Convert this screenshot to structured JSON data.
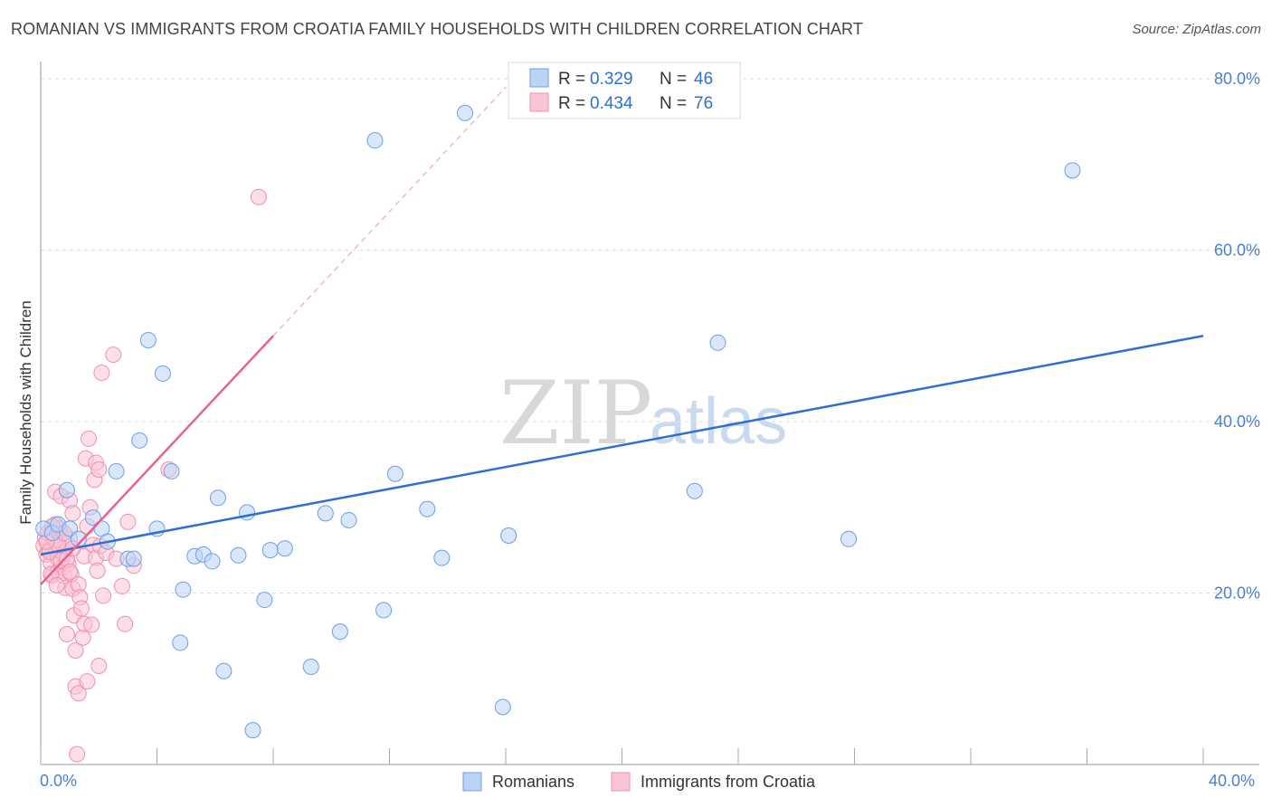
{
  "title": "ROMANIAN VS IMMIGRANTS FROM CROATIA FAMILY HOUSEHOLDS WITH CHILDREN CORRELATION CHART",
  "source": "Source: ZipAtlas.com",
  "watermark": {
    "zip": "ZIP",
    "atlas": "atlas"
  },
  "colors": {
    "blue": "#6c9fe6",
    "blue_line": "#2f6fd0",
    "pink": "#f08fb0",
    "pink_line": "#e8628f",
    "grid": "#dddddd",
    "tick": "#4a7fd4"
  },
  "legend": {
    "r_label": "R =",
    "n_label": "N =",
    "blue": {
      "r": "0.329",
      "n": "46"
    },
    "pink": {
      "r": "0.434",
      "n": "76"
    }
  },
  "bottom_legend": {
    "romanians": "Romanians",
    "croatia": "Immigrants from Croatia"
  },
  "chart_data": {
    "type": "scatter",
    "title": "ROMANIAN VS IMMIGRANTS FROM CROATIA FAMILY HOUSEHOLDS WITH CHILDREN CORRELATION CHART",
    "xlabel": "",
    "ylabel": "Family Households with Children",
    "xlim": [
      0,
      40
    ],
    "ylim": [
      0,
      82
    ],
    "x_tick_labels": [
      "0.0%",
      "40.0%"
    ],
    "y_ticks": [
      20,
      40,
      60,
      80
    ],
    "y_tick_labels": [
      "20.0%",
      "40.0%",
      "60.0%",
      "80.0%"
    ],
    "grid": true,
    "series": [
      {
        "name": "Romanians",
        "color": "#6c9fe6",
        "r": 0.329,
        "n": 46,
        "trend": {
          "x": [
            0,
            40
          ],
          "y": [
            24.5,
            50.0
          ],
          "style": "solid"
        },
        "points": [
          [
            0.1,
            27.5
          ],
          [
            0.4,
            27.0
          ],
          [
            0.6,
            28.0
          ],
          [
            1.0,
            27.5
          ],
          [
            0.9,
            32.0
          ],
          [
            1.8,
            28.8
          ],
          [
            2.1,
            27.5
          ],
          [
            2.3,
            26.0
          ],
          [
            2.6,
            34.2
          ],
          [
            3.0,
            24.0
          ],
          [
            3.2,
            24.0
          ],
          [
            3.4,
            37.8
          ],
          [
            3.7,
            49.5
          ],
          [
            4.0,
            27.5
          ],
          [
            4.2,
            45.6
          ],
          [
            4.5,
            34.2
          ],
          [
            4.8,
            14.2
          ],
          [
            4.9,
            20.4
          ],
          [
            5.3,
            24.3
          ],
          [
            5.6,
            24.5
          ],
          [
            5.9,
            23.7
          ],
          [
            6.1,
            31.1
          ],
          [
            6.3,
            10.9
          ],
          [
            6.8,
            24.4
          ],
          [
            7.1,
            29.4
          ],
          [
            7.3,
            4.0
          ],
          [
            7.7,
            19.2
          ],
          [
            7.9,
            25.0
          ],
          [
            8.4,
            25.2
          ],
          [
            9.3,
            11.4
          ],
          [
            9.8,
            29.3
          ],
          [
            10.3,
            15.5
          ],
          [
            10.6,
            28.5
          ],
          [
            11.5,
            72.8
          ],
          [
            11.8,
            18.0
          ],
          [
            12.2,
            33.9
          ],
          [
            13.3,
            29.8
          ],
          [
            13.8,
            24.1
          ],
          [
            14.6,
            76.0
          ],
          [
            15.9,
            6.7
          ],
          [
            16.1,
            26.7
          ],
          [
            22.5,
            31.9
          ],
          [
            23.3,
            49.2
          ],
          [
            27.8,
            26.3
          ],
          [
            35.5,
            69.3
          ],
          [
            1.3,
            26.3
          ]
        ]
      },
      {
        "name": "Immigrants from Croatia",
        "color": "#f08fb0",
        "r": 0.434,
        "n": 76,
        "trend": {
          "x": [
            0,
            8.0
          ],
          "y": [
            21.0,
            50.0
          ],
          "style": "solid",
          "dashed_extension": {
            "x": [
              8.0,
              16.0
            ],
            "y": [
              50.0,
              79.0
            ]
          }
        },
        "points": [
          [
            0.1,
            25.5
          ],
          [
            0.15,
            26.5
          ],
          [
            0.2,
            24.5
          ],
          [
            0.25,
            27.0
          ],
          [
            0.3,
            25.0
          ],
          [
            0.35,
            23.5
          ],
          [
            0.4,
            22.0
          ],
          [
            0.45,
            26.0
          ],
          [
            0.5,
            28.0
          ],
          [
            0.5,
            31.8
          ],
          [
            0.55,
            25.0
          ],
          [
            0.6,
            24.0
          ],
          [
            0.6,
            22.5
          ],
          [
            0.65,
            27.5
          ],
          [
            0.7,
            26.8
          ],
          [
            0.7,
            31.3
          ],
          [
            0.75,
            23.0
          ],
          [
            0.8,
            24.5
          ],
          [
            0.8,
            22.0
          ],
          [
            0.85,
            20.6
          ],
          [
            0.9,
            25.8
          ],
          [
            0.9,
            15.2
          ],
          [
            0.95,
            23.4
          ],
          [
            1.0,
            30.8
          ],
          [
            1.0,
            26.3
          ],
          [
            1.05,
            22.2
          ],
          [
            1.1,
            29.3
          ],
          [
            1.1,
            20.5
          ],
          [
            1.15,
            17.4
          ],
          [
            1.2,
            13.3
          ],
          [
            1.2,
            9.1
          ],
          [
            1.25,
            1.2
          ],
          [
            1.3,
            8.3
          ],
          [
            1.3,
            21.0
          ],
          [
            1.35,
            19.5
          ],
          [
            1.4,
            18.2
          ],
          [
            1.45,
            14.8
          ],
          [
            1.5,
            16.4
          ],
          [
            1.5,
            24.3
          ],
          [
            1.55,
            35.7
          ],
          [
            1.6,
            27.8
          ],
          [
            1.6,
            9.7
          ],
          [
            1.65,
            38.0
          ],
          [
            1.7,
            30.0
          ],
          [
            1.75,
            16.3
          ],
          [
            1.8,
            25.6
          ],
          [
            1.85,
            33.2
          ],
          [
            1.9,
            35.2
          ],
          [
            1.9,
            24.1
          ],
          [
            1.95,
            22.6
          ],
          [
            2.0,
            34.4
          ],
          [
            2.0,
            11.5
          ],
          [
            2.05,
            25.5
          ],
          [
            2.1,
            45.7
          ],
          [
            2.15,
            19.7
          ],
          [
            2.25,
            24.7
          ],
          [
            2.5,
            47.8
          ],
          [
            2.6,
            24.0
          ],
          [
            2.8,
            20.8
          ],
          [
            2.9,
            16.4
          ],
          [
            3.0,
            28.3
          ],
          [
            3.2,
            23.2
          ],
          [
            4.4,
            34.4
          ],
          [
            7.5,
            66.2
          ],
          [
            0.3,
            24.8
          ],
          [
            0.4,
            27.8
          ],
          [
            0.5,
            26.2
          ],
          [
            0.6,
            25.6
          ],
          [
            0.7,
            23.8
          ],
          [
            0.8,
            27.0
          ],
          [
            0.9,
            24.0
          ],
          [
            1.0,
            22.5
          ],
          [
            1.1,
            25.2
          ],
          [
            0.2,
            26.0
          ],
          [
            0.35,
            22.2
          ],
          [
            0.55,
            20.9
          ]
        ]
      }
    ]
  }
}
